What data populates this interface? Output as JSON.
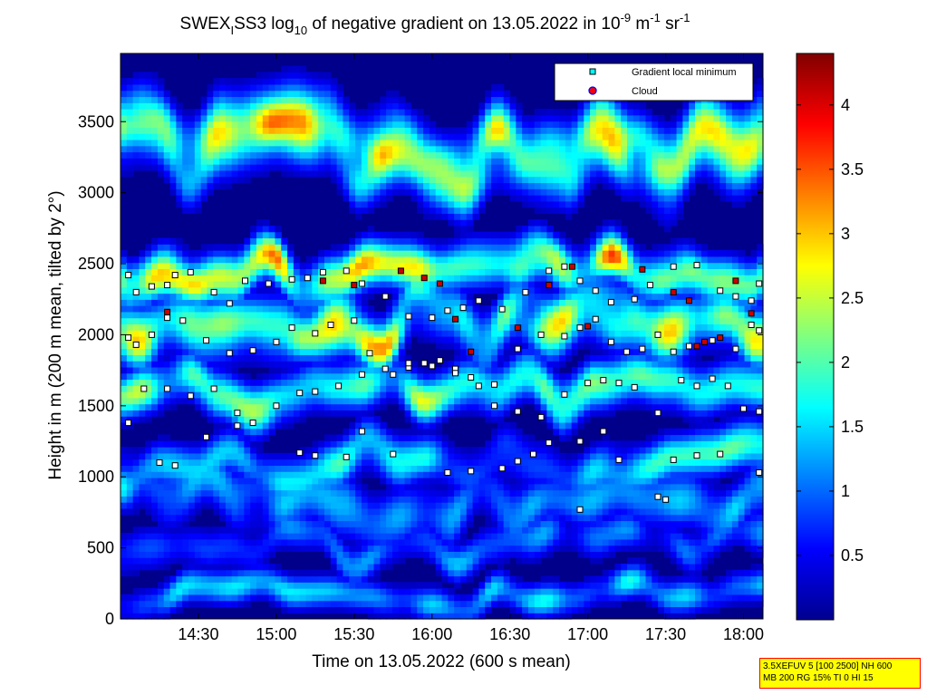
{
  "title": {
    "prefix": "SWEX",
    "subscript": "I",
    "mid": "SS3 log",
    "log_sub": "10",
    "text": " of negative gradient on 13.05.2022 in 10",
    "exp1": "-9",
    "unit1": " m",
    "exp2": "-1",
    "unit2": " sr",
    "exp3": "-1"
  },
  "info_box": {
    "line1": "3.5XEFUV 5 [100 2500] NH 600",
    "line2": "MB 200 RG 15% TI 0 HI 15"
  },
  "chart_data": {
    "type": "heatmap",
    "xlabel": "Time on 13.05.2022 (600 s mean)",
    "ylabel": "Height in m (200 m mean, tilted by 2°)",
    "x_range_hours": [
      14.0,
      18.125
    ],
    "x_ticks": [
      {
        "value": 14.5,
        "label": "14:30"
      },
      {
        "value": 15.0,
        "label": "15:00"
      },
      {
        "value": 15.5,
        "label": "15:30"
      },
      {
        "value": 16.0,
        "label": "16:00"
      },
      {
        "value": 16.5,
        "label": "16:30"
      },
      {
        "value": 17.0,
        "label": "17:00"
      },
      {
        "value": 17.5,
        "label": "17:30"
      },
      {
        "value": 18.0,
        "label": "18:00"
      }
    ],
    "ylim": [
      0,
      3980
    ],
    "y_ticks": [
      0,
      500,
      1000,
      1500,
      2000,
      2500,
      3000,
      3500
    ],
    "colorbar": {
      "range": [
        0.0,
        4.4
      ],
      "ticks": [
        "0.5",
        "1",
        "1.5",
        "2",
        "2.5",
        "3",
        "3.5",
        "4"
      ],
      "tick_values": [
        0.5,
        1,
        1.5,
        2,
        2.5,
        3,
        3.5,
        4
      ],
      "colormap": "jet"
    },
    "legend": {
      "position": "top-right",
      "entries": [
        {
          "label": "Gradient local minimum",
          "marker": "square",
          "color": "#00ffff"
        },
        {
          "label": "Cloud",
          "marker": "circle",
          "color": "#ff0000"
        }
      ]
    },
    "layers": [
      {
        "height": 170,
        "thickness": 110,
        "value": 1.3,
        "note": "bright near-surface band"
      },
      {
        "height": 500,
        "thickness": 140,
        "value": 1.0
      },
      {
        "height": 850,
        "thickness": 200,
        "value": 1.1
      },
      {
        "height": 1100,
        "thickness": 160,
        "value": 1.5
      },
      {
        "height": 1600,
        "thickness": 160,
        "value": 2.0
      },
      {
        "height": 2100,
        "thickness": 200,
        "value": 2.3
      },
      {
        "height": 2450,
        "thickness": 160,
        "value": 2.6
      },
      {
        "height": 3300,
        "thickness": 250,
        "value": 2.4
      }
    ],
    "gradient_minima_series": [
      {
        "x": [
          14.05,
          14.1,
          14.2,
          14.3,
          14.35,
          14.45,
          14.6,
          14.7,
          14.8,
          14.95,
          15.1,
          15.2,
          15.3,
          15.45,
          15.55,
          15.7,
          15.85,
          16.0,
          16.1,
          16.2,
          16.3,
          16.45,
          16.6,
          16.75,
          16.85,
          16.95,
          17.05,
          17.15,
          17.3,
          17.4,
          17.55,
          17.7,
          17.85,
          17.95,
          18.05,
          18.1
        ],
        "y": [
          2420,
          2300,
          2340,
          2350,
          2420,
          2440,
          2300,
          2220,
          2380,
          2360,
          2390,
          2400,
          2440,
          2450,
          2360,
          2270,
          2130,
          2120,
          2170,
          2190,
          2240,
          2180,
          2300,
          2450,
          2480,
          2380,
          2310,
          2230,
          2250,
          2350,
          2480,
          2490,
          2310,
          2270,
          2240,
          2360
        ]
      },
      {
        "x": [
          14.05,
          14.1,
          14.2,
          14.3,
          14.4,
          14.55,
          14.7,
          14.85,
          15.0,
          15.1,
          15.25,
          15.35,
          15.5,
          15.6,
          15.75,
          15.85,
          15.95,
          16.05,
          16.15,
          16.25,
          16.4,
          16.55,
          16.7,
          16.85,
          16.95,
          17.05,
          17.15,
          17.25,
          17.35,
          17.45,
          17.55,
          17.65,
          17.8,
          17.95,
          18.05,
          18.1
        ],
        "y": [
          1980,
          1930,
          2000,
          2120,
          2100,
          1960,
          1870,
          1890,
          1950,
          2050,
          2010,
          2070,
          2100,
          1870,
          1720,
          1770,
          1800,
          1820,
          1760,
          1700,
          1650,
          1900,
          2000,
          1990,
          2050,
          2110,
          1950,
          1880,
          1900,
          2000,
          1880,
          1920,
          1960,
          1900,
          2070,
          2030
        ]
      },
      {
        "x": [
          14.05,
          14.15,
          14.3,
          14.45,
          14.6,
          14.75,
          14.85,
          15.0,
          15.15,
          15.25,
          15.4,
          15.55,
          15.7,
          15.85,
          16.0,
          16.15,
          16.3,
          16.4,
          16.55,
          16.7,
          16.85,
          17.0,
          17.1,
          17.2,
          17.3,
          17.45,
          17.6,
          17.7,
          17.8,
          17.9,
          18.0,
          18.1
        ],
        "y": [
          1380,
          1620,
          1620,
          1570,
          1620,
          1450,
          1380,
          1500,
          1590,
          1600,
          1640,
          1720,
          1760,
          1800,
          1780,
          1730,
          1640,
          1500,
          1460,
          1420,
          1580,
          1660,
          1680,
          1660,
          1630,
          1450,
          1680,
          1640,
          1690,
          1640,
          1480,
          1460
        ]
      },
      {
        "x": [
          14.25,
          14.35,
          14.55,
          14.75,
          15.15,
          15.25,
          15.45,
          15.55,
          15.75,
          16.1,
          16.25,
          16.45,
          16.55,
          16.65,
          16.75,
          16.95,
          17.1,
          17.2,
          17.45,
          17.55,
          17.7,
          17.85,
          18.1
        ],
        "y": [
          1100,
          1080,
          1280,
          1360,
          1170,
          1150,
          1140,
          1320,
          1160,
          1030,
          1040,
          1060,
          1110,
          1160,
          1240,
          1250,
          1320,
          1120,
          860,
          1120,
          1150,
          1160,
          1030
        ]
      },
      {
        "x": [
          16.95,
          17.5
        ],
        "y": [
          770,
          840
        ]
      }
    ],
    "cloud_series": {
      "x": [
        14.3,
        15.3,
        15.5,
        15.8,
        15.95,
        16.05,
        16.15,
        16.25,
        16.55,
        16.75,
        16.9,
        17.0,
        17.35,
        17.55,
        17.65,
        17.7,
        17.75,
        17.85,
        17.95,
        18.05
      ],
      "y": [
        2160,
        2380,
        2350,
        2450,
        2400,
        2360,
        2110,
        1880,
        2050,
        2350,
        2480,
        2060,
        2460,
        2300,
        2240,
        1920,
        1950,
        1980,
        2380,
        2150
      ]
    }
  }
}
